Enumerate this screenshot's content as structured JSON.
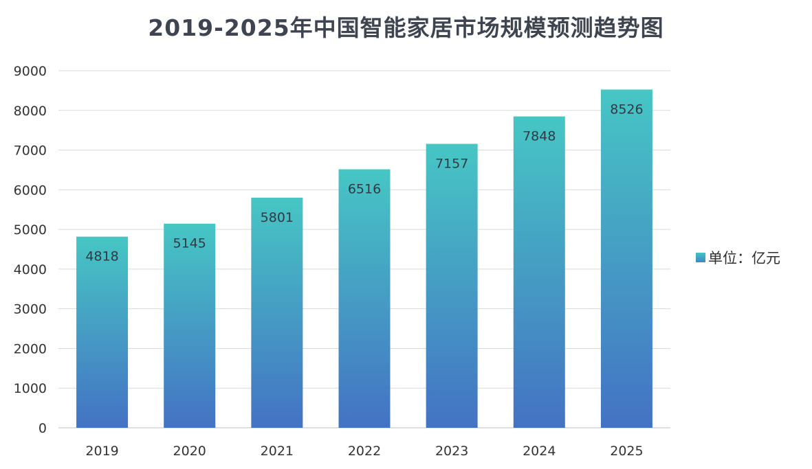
{
  "colors": {
    "bar_top": "#46c6c4",
    "bar_bottom": "#4472c4",
    "grid": "#d9d9d9",
    "axis": "#bfbfbf",
    "title": "#3f4550"
  },
  "chart_data": {
    "type": "bar",
    "title": "2019-2025年中国智能家居市场规模预测趋势图",
    "categories": [
      "2019",
      "2020",
      "2021",
      "2022",
      "2023",
      "2024",
      "2025"
    ],
    "series": [
      {
        "name": "单位：亿元",
        "values": [
          4818,
          5145,
          5801,
          6516,
          7157,
          7848,
          8526
        ]
      }
    ],
    "ylim": [
      0,
      9000
    ],
    "yticks": [
      0,
      1000,
      2000,
      3000,
      4000,
      5000,
      6000,
      7000,
      8000,
      9000
    ],
    "grid": true,
    "legend": "right",
    "data_labels": "inside-top"
  }
}
